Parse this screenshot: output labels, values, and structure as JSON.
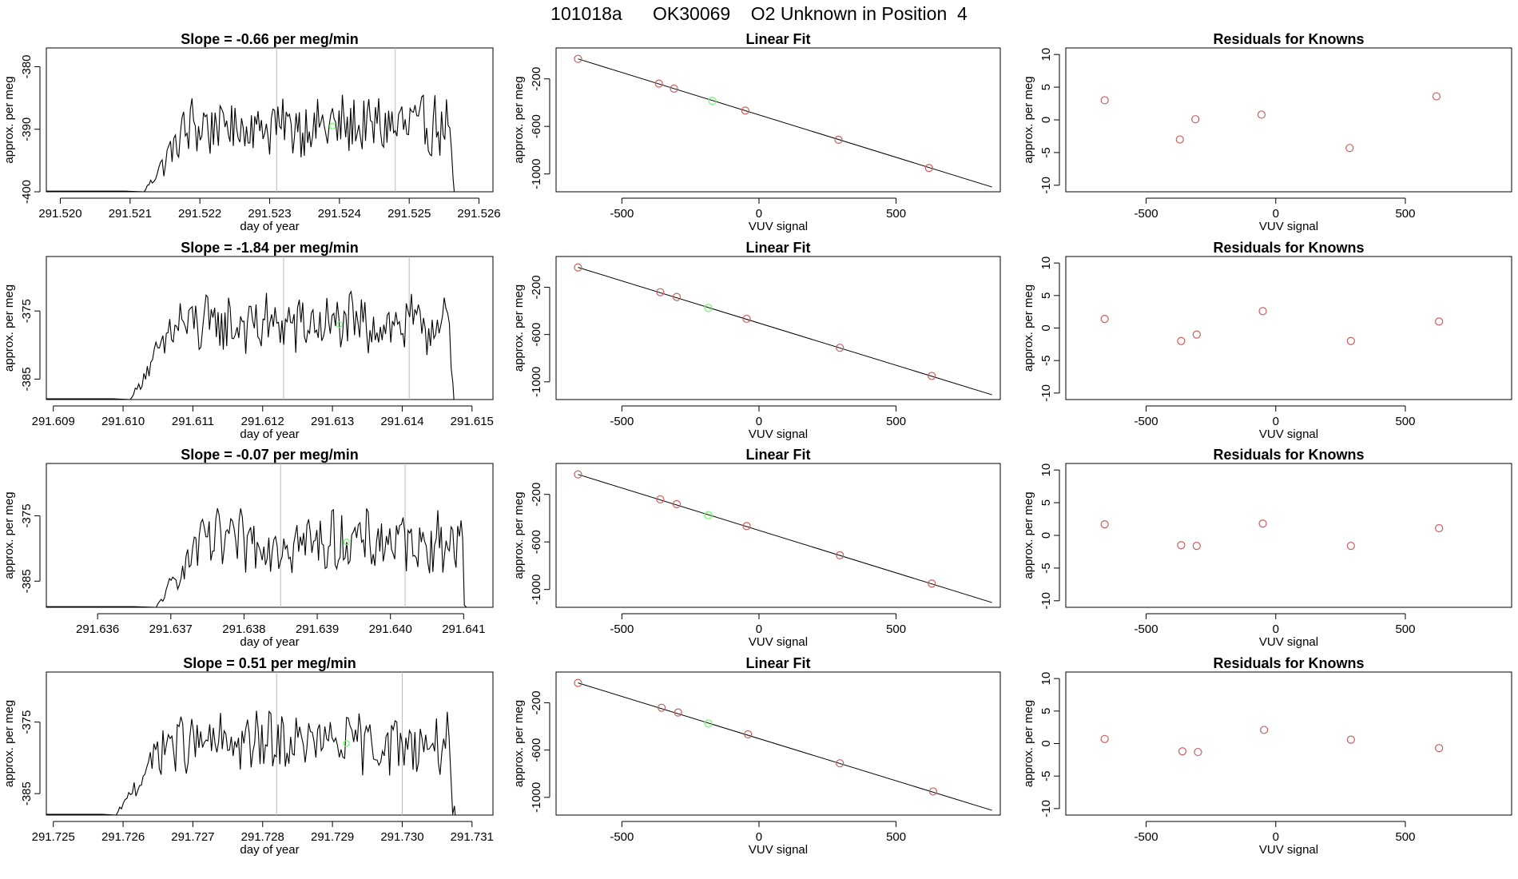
{
  "page_title": "101018a      OK30069    O2 Unknown in Position  4",
  "colors": {
    "known_point": "#cd5c5c",
    "unknown_point": "#66ff66",
    "line": "#000000",
    "vline": "#bbbbbb"
  },
  "chart_data": [
    {
      "row": 1,
      "panels": [
        {
          "type": "line",
          "title": "Slope =  -0.66  per meg/min",
          "xlabel": "day of year",
          "ylabel": "approx. per meg",
          "xlim": [
            291.5198,
            291.5262
          ],
          "ylim": [
            -400,
            -377
          ],
          "xticks": [
            291.52,
            291.521,
            291.522,
            291.523,
            291.524,
            291.525,
            291.526
          ],
          "xtick_labels": [
            "291.520",
            "291.521",
            "291.522",
            "291.523",
            "291.524",
            "291.525",
            "291.526"
          ],
          "yticks": [
            -400,
            -390,
            -380
          ],
          "ytick_labels": [
            "-400",
            "-390",
            "-380"
          ],
          "x_start": 291.5212,
          "x_end": 291.5257,
          "vlines": [
            291.5231,
            291.5248
          ],
          "unknown_point": {
            "x": 291.5239,
            "y": -389.5
          }
        },
        {
          "type": "scatter",
          "title": "Linear Fit",
          "xlabel": "VUV signal",
          "ylabel": "approx. per meg",
          "xlim": [
            -740,
            880
          ],
          "ylim": [
            -1150,
            60
          ],
          "xticks": [
            -500,
            0,
            500
          ],
          "xtick_labels": [
            "-500",
            "0",
            "500"
          ],
          "yticks": [
            -1000,
            -600,
            -200
          ],
          "ytick_labels": [
            "-1000",
            "-600",
            "-200"
          ],
          "fit_line": {
            "x": [
              -660,
              850
            ],
            "y": [
              -32,
              -1110
            ]
          },
          "known_points": [
            {
              "x": -660,
              "y": -32
            },
            {
              "x": -365,
              "y": -240
            },
            {
              "x": -310,
              "y": -282
            },
            {
              "x": -50,
              "y": -467
            },
            {
              "x": 290,
              "y": -712
            },
            {
              "x": 620,
              "y": -950
            }
          ],
          "unknown_points": [
            {
              "x": -170,
              "y": -385
            }
          ]
        },
        {
          "type": "scatter",
          "title": "Residuals for Knowns",
          "xlabel": "VUV signal",
          "ylabel": "approx. per meg",
          "xlim": [
            -810,
            910
          ],
          "ylim": [
            -11,
            11
          ],
          "xticks": [
            -500,
            0,
            500
          ],
          "xtick_labels": [
            "-500",
            "0",
            "500"
          ],
          "yticks": [
            -10,
            -5,
            0,
            5,
            10
          ],
          "ytick_labels": [
            "-10",
            "-5",
            "0",
            "5",
            "10"
          ],
          "known_points": [
            {
              "x": -660,
              "y": 3
            },
            {
              "x": -370,
              "y": -3
            },
            {
              "x": -310,
              "y": 0.1
            },
            {
              "x": -55,
              "y": 0.8
            },
            {
              "x": 285,
              "y": -4.3
            },
            {
              "x": 620,
              "y": 3.6
            }
          ]
        }
      ]
    },
    {
      "row": 2,
      "panels": [
        {
          "type": "line",
          "title": "Slope =  -1.84  per meg/min",
          "xlabel": "day of year",
          "ylabel": "approx. per meg",
          "xlim": [
            291.6089,
            291.6153
          ],
          "ylim": [
            -388,
            -367
          ],
          "xticks": [
            291.609,
            291.61,
            291.611,
            291.612,
            291.613,
            291.614,
            291.615
          ],
          "xtick_labels": [
            "291.609",
            "291.610",
            "291.611",
            "291.612",
            "291.613",
            "291.614",
            "291.615"
          ],
          "yticks": [
            -385,
            -375
          ],
          "ytick_labels": [
            "-385",
            "-375"
          ],
          "x_start": 291.6101,
          "x_end": 291.6148,
          "vlines": [
            291.6123,
            291.6141
          ],
          "unknown_point": {
            "x": 291.6131,
            "y": -377
          }
        },
        {
          "type": "scatter",
          "title": "Linear Fit",
          "xlabel": "VUV signal",
          "ylabel": "approx. per meg",
          "xlim": [
            -740,
            880
          ],
          "ylim": [
            -1150,
            60
          ],
          "xticks": [
            -500,
            0,
            500
          ],
          "xtick_labels": [
            "-500",
            "0",
            "500"
          ],
          "yticks": [
            -1000,
            -600,
            -200
          ],
          "ytick_labels": [
            "-1000",
            "-600",
            "-200"
          ],
          "fit_line": {
            "x": [
              -660,
              850
            ],
            "y": [
              -32,
              -1110
            ]
          },
          "known_points": [
            {
              "x": -660,
              "y": -32
            },
            {
              "x": -360,
              "y": -242
            },
            {
              "x": -300,
              "y": -282
            },
            {
              "x": -45,
              "y": -467
            },
            {
              "x": 295,
              "y": -712
            },
            {
              "x": 630,
              "y": -950
            }
          ],
          "unknown_points": [
            {
              "x": -185,
              "y": -375
            }
          ]
        },
        {
          "type": "scatter",
          "title": "Residuals for Knowns",
          "xlabel": "VUV signal",
          "ylabel": "approx. per meg",
          "xlim": [
            -810,
            910
          ],
          "ylim": [
            -11,
            11
          ],
          "xticks": [
            -500,
            0,
            500
          ],
          "xtick_labels": [
            "-500",
            "0",
            "500"
          ],
          "yticks": [
            -10,
            -5,
            0,
            5,
            10
          ],
          "ytick_labels": [
            "-10",
            "-5",
            "0",
            "5",
            "10"
          ],
          "known_points": [
            {
              "x": -660,
              "y": 1.4
            },
            {
              "x": -365,
              "y": -2
            },
            {
              "x": -305,
              "y": -1
            },
            {
              "x": -50,
              "y": 2.6
            },
            {
              "x": 290,
              "y": -2
            },
            {
              "x": 630,
              "y": 1
            }
          ]
        }
      ]
    },
    {
      "row": 3,
      "panels": [
        {
          "type": "line",
          "title": "Slope =  -0.07  per meg/min",
          "xlabel": "day of year",
          "ylabel": "approx. per meg",
          "xlim": [
            291.6353,
            291.6414
          ],
          "ylim": [
            -389,
            -367
          ],
          "xticks": [
            291.636,
            291.637,
            291.638,
            291.639,
            291.64,
            291.641
          ],
          "xtick_labels": [
            "291.636",
            "291.637",
            "291.638",
            "291.639",
            "291.640",
            "291.641"
          ],
          "yticks": [
            -385,
            -375
          ],
          "ytick_labels": [
            "-385",
            "-375"
          ],
          "x_start": 291.6368,
          "x_end": 291.6411,
          "vlines": [
            291.6385,
            291.6402
          ],
          "unknown_point": {
            "x": 291.6394,
            "y": -379
          }
        },
        {
          "type": "scatter",
          "title": "Linear Fit",
          "xlabel": "VUV signal",
          "ylabel": "approx. per meg",
          "xlim": [
            -740,
            880
          ],
          "ylim": [
            -1150,
            60
          ],
          "xticks": [
            -500,
            0,
            500
          ],
          "xtick_labels": [
            "-500",
            "0",
            "500"
          ],
          "yticks": [
            -1000,
            -600,
            -200
          ],
          "ytick_labels": [
            "-1000",
            "-600",
            "-200"
          ],
          "fit_line": {
            "x": [
              -660,
              850
            ],
            "y": [
              -32,
              -1110
            ]
          },
          "known_points": [
            {
              "x": -660,
              "y": -32
            },
            {
              "x": -360,
              "y": -242
            },
            {
              "x": -300,
              "y": -282
            },
            {
              "x": -45,
              "y": -467
            },
            {
              "x": 295,
              "y": -712
            },
            {
              "x": 630,
              "y": -950
            }
          ],
          "unknown_points": [
            {
              "x": -185,
              "y": -375
            }
          ]
        },
        {
          "type": "scatter",
          "title": "Residuals for Knowns",
          "xlabel": "VUV signal",
          "ylabel": "approx. per meg",
          "xlim": [
            -810,
            910
          ],
          "ylim": [
            -11,
            11
          ],
          "xticks": [
            -500,
            0,
            500
          ],
          "xtick_labels": [
            "-500",
            "0",
            "500"
          ],
          "yticks": [
            -10,
            -5,
            0,
            5,
            10
          ],
          "ytick_labels": [
            "-10",
            "-5",
            "0",
            "5",
            "10"
          ],
          "known_points": [
            {
              "x": -660,
              "y": 1.7
            },
            {
              "x": -365,
              "y": -1.5
            },
            {
              "x": -305,
              "y": -1.6
            },
            {
              "x": -50,
              "y": 1.8
            },
            {
              "x": 290,
              "y": -1.6
            },
            {
              "x": 630,
              "y": 1.1
            }
          ]
        }
      ]
    },
    {
      "row": 4,
      "panels": [
        {
          "type": "line",
          "title": "Slope =  0.51  per meg/min",
          "xlabel": "day of year",
          "ylabel": "approx. per meg",
          "xlim": [
            291.7249,
            291.7313
          ],
          "ylim": [
            -388,
            -368
          ],
          "xticks": [
            291.725,
            291.726,
            291.727,
            291.728,
            291.729,
            291.73,
            291.731
          ],
          "xtick_labels": [
            "291.725",
            "291.726",
            "291.727",
            "291.728",
            "291.729",
            "291.730",
            "291.731"
          ],
          "yticks": [
            -385,
            -375
          ],
          "ytick_labels": [
            "-385",
            "-375"
          ],
          "x_start": 291.7259,
          "x_end": 291.7308,
          "vlines": [
            291.7282,
            291.73
          ],
          "unknown_point": {
            "x": 291.7292,
            "y": -378
          }
        },
        {
          "type": "scatter",
          "title": "Linear Fit",
          "xlabel": "VUV signal",
          "ylabel": "approx. per meg",
          "xlim": [
            -740,
            880
          ],
          "ylim": [
            -1150,
            60
          ],
          "xticks": [
            -500,
            0,
            500
          ],
          "xtick_labels": [
            "-500",
            "0",
            "500"
          ],
          "yticks": [
            -1000,
            -600,
            -200
          ],
          "ytick_labels": [
            "-1000",
            "-600",
            "-200"
          ],
          "fit_line": {
            "x": [
              -660,
              850
            ],
            "y": [
              -32,
              -1110
            ]
          },
          "known_points": [
            {
              "x": -660,
              "y": -32
            },
            {
              "x": -355,
              "y": -242
            },
            {
              "x": -295,
              "y": -282
            },
            {
              "x": -40,
              "y": -467
            },
            {
              "x": 295,
              "y": -712
            },
            {
              "x": 635,
              "y": -950
            }
          ],
          "unknown_points": [
            {
              "x": -185,
              "y": -375
            }
          ]
        },
        {
          "type": "scatter",
          "title": "Residuals for Knowns",
          "xlabel": "VUV signal",
          "ylabel": "approx. per meg",
          "xlim": [
            -810,
            910
          ],
          "ylim": [
            -11,
            11
          ],
          "xticks": [
            -500,
            0,
            500
          ],
          "xtick_labels": [
            "-500",
            "0",
            "500"
          ],
          "yticks": [
            -10,
            -5,
            0,
            5,
            10
          ],
          "ytick_labels": [
            "-10",
            "-5",
            "0",
            "5",
            "10"
          ],
          "known_points": [
            {
              "x": -660,
              "y": 0.7
            },
            {
              "x": -360,
              "y": -1.2
            },
            {
              "x": -300,
              "y": -1.3
            },
            {
              "x": -45,
              "y": 2.1
            },
            {
              "x": 290,
              "y": 0.6
            },
            {
              "x": 630,
              "y": -0.7
            }
          ]
        }
      ]
    }
  ]
}
